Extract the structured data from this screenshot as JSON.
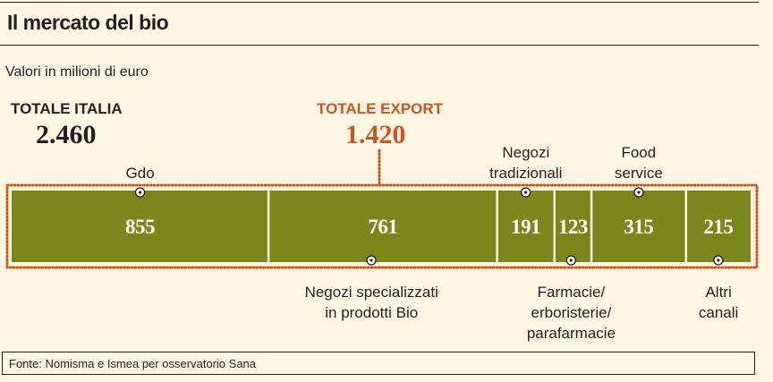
{
  "header": {
    "title": "Il mercato del bio",
    "subtitle": "Valori in milioni di euro"
  },
  "totals": {
    "italia_label": "TOTALE ITALIA",
    "italia_value": "2.460",
    "export_label": "TOTALE EXPORT",
    "export_value": "1.420"
  },
  "colors": {
    "bar": "#7b861b",
    "export_accent": "#d2531b",
    "background": "#fdf7e3"
  },
  "chart_data": {
    "type": "bar",
    "orientation": "horizontal-stacked",
    "total": 2460,
    "export_total": 1420,
    "segments": [
      {
        "label": "Gdo",
        "value": 855,
        "label_position": "above"
      },
      {
        "label": "Negozi specializzati in prodotti Bio",
        "label_lines": [
          "Negozi specializzati",
          "in prodotti Bio"
        ],
        "value": 761,
        "label_position": "below"
      },
      {
        "label": "Negozi tradizionali",
        "label_lines": [
          "Negozi",
          "tradizionali"
        ],
        "value": 191,
        "label_position": "above"
      },
      {
        "label": "Farmacie/ erboristerie/ parafarmacie",
        "label_lines": [
          "Farmacie/",
          "erboristerie/",
          "parafarmacie"
        ],
        "value": 123,
        "label_position": "below"
      },
      {
        "label": "Food service",
        "label_lines": [
          "Food",
          "service"
        ],
        "value": 315,
        "label_position": "above"
      },
      {
        "label": "Altri canali",
        "label_lines": [
          "Altri",
          "canali"
        ],
        "value": 215,
        "label_position": "below"
      }
    ]
  },
  "footer": {
    "source": "Fonte: Nomisma e Ismea per osservatorio Sana"
  }
}
